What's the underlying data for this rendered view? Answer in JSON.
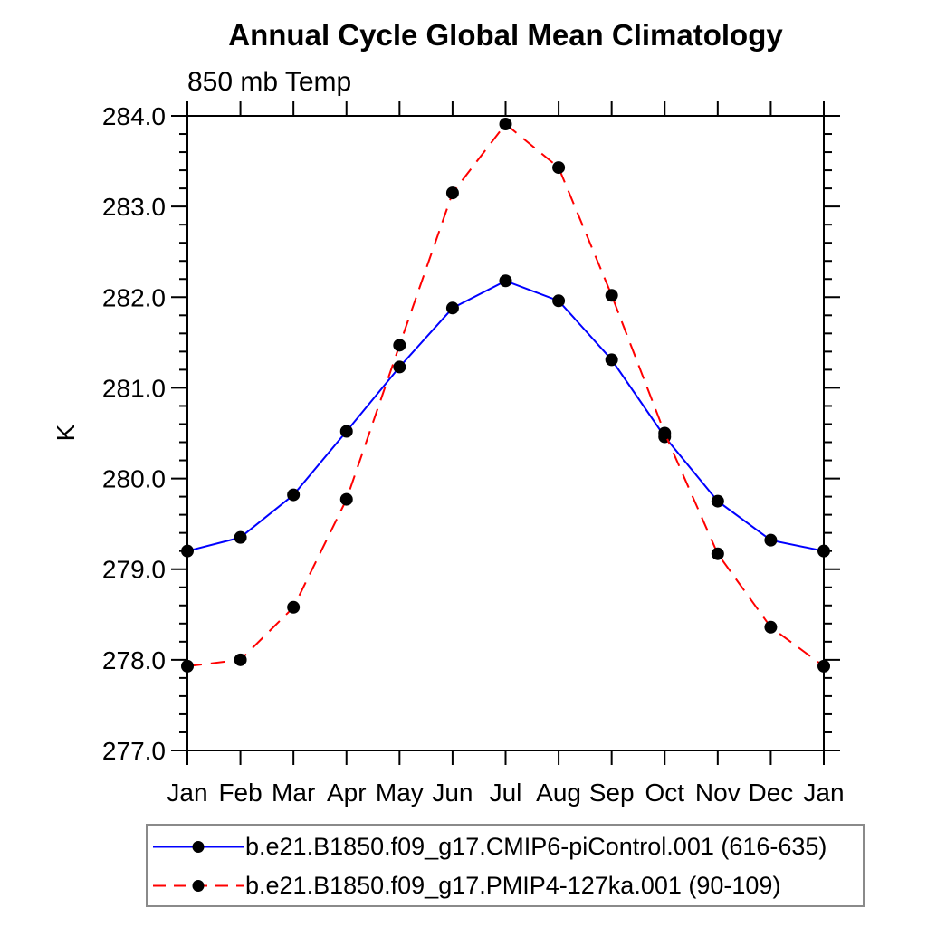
{
  "header": {
    "title": "Annual Cycle Global Mean Climatology",
    "subtitle": "850 mb Temp"
  },
  "chart_data": {
    "type": "line",
    "title": "Annual Cycle Global Mean Climatology",
    "subtitle": "850 mb Temp",
    "xlabel": "",
    "ylabel": "K",
    "x_labels": [
      "Jan",
      "Feb",
      "Mar",
      "Apr",
      "May",
      "Jun",
      "Jul",
      "Aug",
      "Sep",
      "Oct",
      "Nov",
      "Dec",
      "Jan"
    ],
    "ylim": [
      277.0,
      284.0
    ],
    "ytick_major_step": 1.0,
    "ytick_minor_step": 0.2,
    "ytick_labels": [
      "277.0",
      "278.0",
      "279.0",
      "280.0",
      "281.0",
      "282.0",
      "283.0",
      "284.0"
    ],
    "grid": false,
    "legend_position": "bottom",
    "frame_color": "#000000",
    "marker_color": "#000000",
    "series": [
      {
        "name": "b.e21.B1850.f09_g17.CMIP6-piControl.001 (616-635)",
        "color": "#0000ff",
        "line_style": "solid",
        "marker": "filled-circle",
        "values": [
          279.2,
          279.35,
          279.82,
          280.52,
          281.23,
          281.88,
          282.18,
          281.96,
          281.31,
          280.46,
          279.75,
          279.32,
          279.2
        ]
      },
      {
        "name": "b.e21.B1850.f09_g17.PMIP4-127ka.001 (90-109)",
        "color": "#ff0000",
        "line_style": "dashed",
        "marker": "filled-circle",
        "values": [
          277.93,
          278.0,
          278.58,
          279.77,
          281.47,
          283.15,
          283.91,
          283.43,
          282.02,
          280.5,
          279.17,
          278.36,
          277.93
        ]
      }
    ]
  }
}
